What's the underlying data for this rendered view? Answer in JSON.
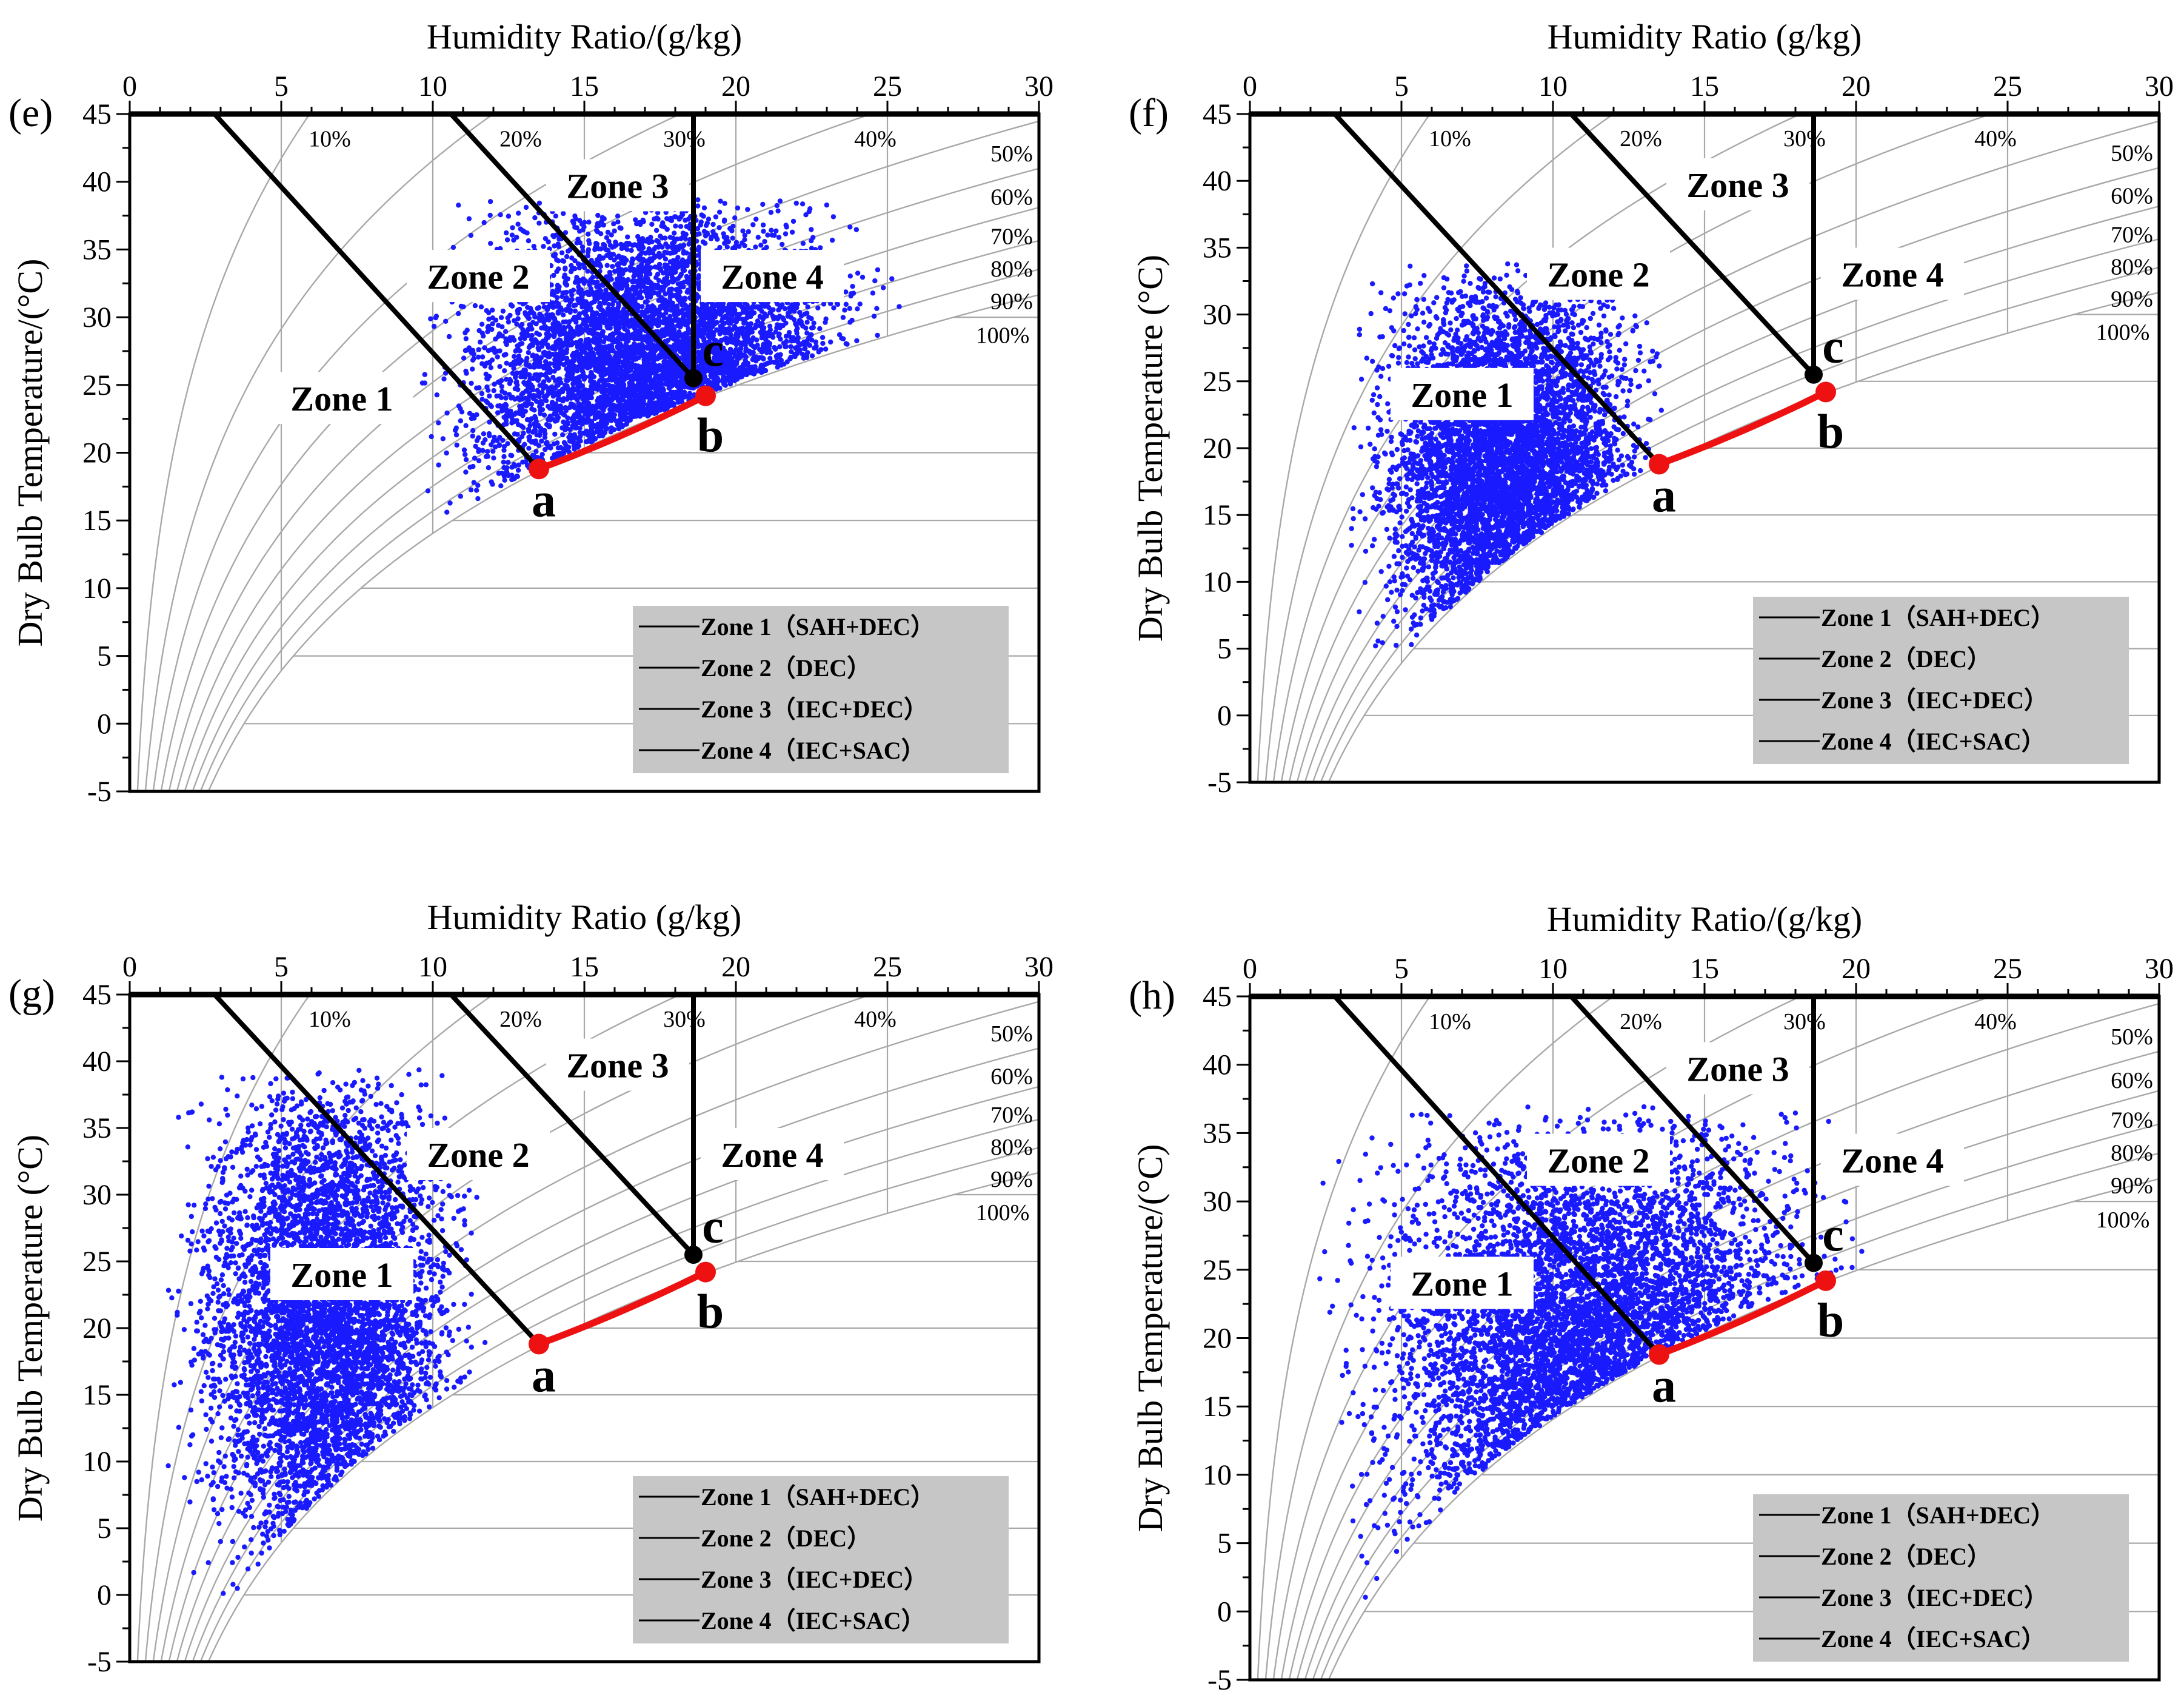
{
  "chart_data": [
    {
      "panel_label": "(e)",
      "type": "scatter",
      "title": "",
      "xlabel": "Humidity Ratio/(g/kg)",
      "ylabel": "Dry Bulb Temperature/(°C)",
      "xlim": [
        0,
        30
      ],
      "ylim": [
        -5,
        45
      ],
      "x_ticks": [
        0,
        5,
        10,
        15,
        20,
        25,
        30
      ],
      "y_ticks": [
        -5,
        0,
        5,
        10,
        15,
        20,
        25,
        30,
        35,
        40,
        45
      ],
      "grid": true,
      "rh_curves": [
        "10%",
        "20%",
        "30%",
        "40%",
        "50%",
        "60%",
        "70%",
        "80%",
        "90%",
        "100%"
      ],
      "zone_labels": [
        "Zone 1",
        "Zone 2",
        "Zone 3",
        "Zone 4"
      ],
      "points": [
        {
          "label": "a",
          "x": 13.5,
          "y": 18.8
        },
        {
          "label": "b",
          "x": 19.0,
          "y": 24.2
        },
        {
          "label": "c",
          "x": 18.6,
          "y": 25.5
        }
      ],
      "cloud": {
        "x_range": [
          9,
          26
        ],
        "t_range": [
          12,
          39
        ],
        "density": "high"
      },
      "legend": [
        "Zone 1（SAH+DEC）",
        "Zone 2（DEC）",
        "Zone 3（IEC+DEC）",
        "Zone 4（IEC+SAC）"
      ]
    },
    {
      "panel_label": "(f)",
      "type": "scatter",
      "title": "",
      "xlabel": "Humidity Ratio (g/kg)",
      "ylabel": "Dry Bulb Temperature (°C)",
      "xlim": [
        0,
        30
      ],
      "ylim": [
        -5,
        45
      ],
      "x_ticks": [
        0,
        5,
        10,
        15,
        20,
        25,
        30
      ],
      "y_ticks": [
        -5,
        0,
        5,
        10,
        15,
        20,
        25,
        30,
        35,
        40,
        45
      ],
      "grid": true,
      "rh_curves": [
        "10%",
        "20%",
        "30%",
        "40%",
        "50%",
        "60%",
        "70%",
        "80%",
        "90%",
        "100%"
      ],
      "zone_labels": [
        "Zone 1",
        "Zone 2",
        "Zone 3",
        "Zone 4"
      ],
      "points": [
        {
          "label": "a",
          "x": 13.5,
          "y": 18.8
        },
        {
          "label": "b",
          "x": 19.0,
          "y": 24.2
        },
        {
          "label": "c",
          "x": 18.6,
          "y": 25.5
        }
      ],
      "cloud": {
        "x_range": [
          3,
          14
        ],
        "t_range": [
          2,
          34
        ],
        "density": "high"
      },
      "legend": [
        "Zone 1（SAH+DEC）",
        "Zone 2（DEC）",
        "Zone 3（IEC+DEC）",
        "Zone 4（IEC+SAC）"
      ]
    },
    {
      "panel_label": "(g)",
      "type": "scatter",
      "title": "",
      "xlabel": "Humidity Ratio (g/kg)",
      "ylabel": "Dry Bulb Temperature (°C)",
      "xlim": [
        0,
        30
      ],
      "ylim": [
        -5,
        45
      ],
      "x_ticks": [
        0,
        5,
        10,
        15,
        20,
        25,
        30
      ],
      "y_ticks": [
        -5,
        0,
        5,
        10,
        15,
        20,
        25,
        30,
        35,
        40,
        45
      ],
      "grid": true,
      "rh_curves": [
        "10%",
        "20%",
        "30%",
        "40%",
        "50%",
        "60%",
        "70%",
        "80%",
        "90%",
        "100%"
      ],
      "zone_labels": [
        "Zone 1",
        "Zone 2",
        "Zone 3",
        "Zone 4"
      ],
      "points": [
        {
          "label": "a",
          "x": 13.5,
          "y": 18.8
        },
        {
          "label": "b",
          "x": 19.0,
          "y": 24.2
        },
        {
          "label": "c",
          "x": 18.6,
          "y": 25.5
        }
      ],
      "cloud": {
        "x_range": [
          1,
          12
        ],
        "t_range": [
          0,
          40
        ],
        "density": "high"
      },
      "legend": [
        "Zone 1（SAH+DEC）",
        "Zone 2（DEC）",
        "Zone 3（IEC+DEC）",
        "Zone 4（IEC+SAC）"
      ]
    },
    {
      "panel_label": "(h)",
      "type": "scatter",
      "title": "",
      "xlabel": "Humidity Ratio/(g/kg)",
      "ylabel": "Dry Bulb Temperature/(°C)",
      "xlim": [
        0,
        30
      ],
      "ylim": [
        -5,
        45
      ],
      "x_ticks": [
        0,
        5,
        10,
        15,
        20,
        25,
        30
      ],
      "y_ticks": [
        -5,
        0,
        5,
        10,
        15,
        20,
        25,
        30,
        35,
        40,
        45
      ],
      "grid": true,
      "rh_curves": [
        "10%",
        "20%",
        "30%",
        "40%",
        "50%",
        "60%",
        "70%",
        "80%",
        "90%",
        "100%"
      ],
      "zone_labels": [
        "Zone 1",
        "Zone 2",
        "Zone 3",
        "Zone 4"
      ],
      "points": [
        {
          "label": "a",
          "x": 13.5,
          "y": 18.8
        },
        {
          "label": "b",
          "x": 19.0,
          "y": 24.2
        },
        {
          "label": "c",
          "x": 18.6,
          "y": 25.5
        }
      ],
      "cloud": {
        "x_range": [
          2,
          21
        ],
        "t_range": [
          -1,
          37
        ],
        "density": "high"
      },
      "legend": [
        "Zone 1（SAH+DEC）",
        "Zone 2（DEC）",
        "Zone 3（IEC+DEC）",
        "Zone 4（IEC+SAC）"
      ]
    }
  ],
  "colors": {
    "scatter": "#1a1aff",
    "process_line": "#ee1111",
    "zone_boundary": "#000000",
    "rh_curve": "#a8a8a8",
    "grid": "#a8a8a8",
    "legend_bg": "#c6c6c6",
    "axis": "#000000"
  }
}
